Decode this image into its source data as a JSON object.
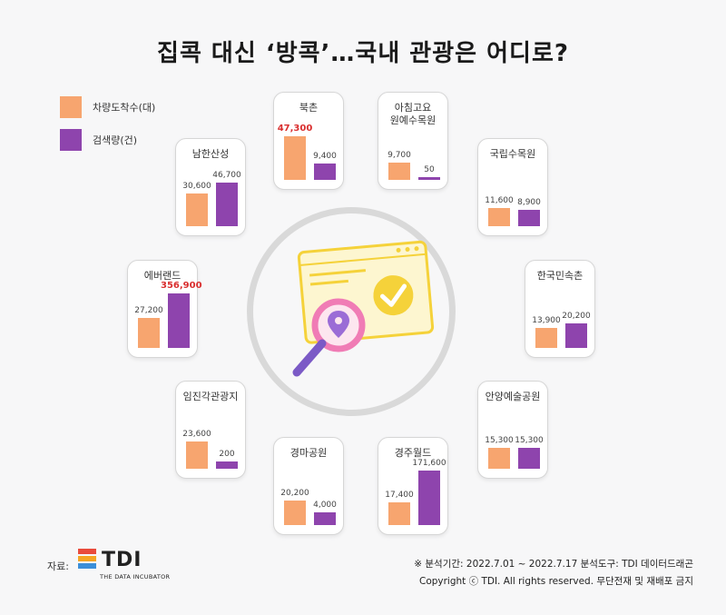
{
  "title": "집콕 대신 ‘방콕’…국내 관광은 어디로?",
  "legend": [
    {
      "label": "차량도착수(대)",
      "color": "#f7a56f"
    },
    {
      "label": "검색량(건)",
      "color": "#8e44ad"
    }
  ],
  "chart_data": {
    "type": "bar",
    "title": "집콕 대신 ‘방콕’…국내 관광은 어디로?",
    "series": [
      {
        "name": "차량도착수(대)",
        "color": "#f7a56f"
      },
      {
        "name": "검색량(건)",
        "color": "#8e44ad"
      }
    ],
    "categories": [
      {
        "name": "북촌",
        "vehicles": 47300,
        "searches": 9400,
        "vehicles_label": "47,300",
        "searches_label": "9,400",
        "highlight": "vehicles"
      },
      {
        "name": "아침고요\n원예수목원",
        "vehicles": 9700,
        "searches": 50,
        "vehicles_label": "9,700",
        "searches_label": "50",
        "highlight": ""
      },
      {
        "name": "국립수목원",
        "vehicles": 11600,
        "searches": 8900,
        "vehicles_label": "11,600",
        "searches_label": "8,900",
        "highlight": ""
      },
      {
        "name": "한국민속촌",
        "vehicles": 13900,
        "searches": 20200,
        "vehicles_label": "13,900",
        "searches_label": "20,200",
        "highlight": ""
      },
      {
        "name": "안양예술공원",
        "vehicles": 15300,
        "searches": 15300,
        "vehicles_label": "15,300",
        "searches_label": "15,300",
        "highlight": ""
      },
      {
        "name": "경주월드",
        "vehicles": 17400,
        "searches": 171600,
        "vehicles_label": "17,400",
        "searches_label": "171,600",
        "highlight": ""
      },
      {
        "name": "경마공원",
        "vehicles": 20200,
        "searches": 4000,
        "vehicles_label": "20,200",
        "searches_label": "4,000",
        "highlight": ""
      },
      {
        "name": "임진각관광지",
        "vehicles": 23600,
        "searches": 200,
        "vehicles_label": "23,600",
        "searches_label": "200",
        "highlight": ""
      },
      {
        "name": "에버랜드",
        "vehicles": 27200,
        "searches": 356900,
        "vehicles_label": "27,200",
        "searches_label": "356,900",
        "highlight": "searches"
      },
      {
        "name": "남한산성",
        "vehicles": 30600,
        "searches": 46700,
        "vehicles_label": "30,600",
        "searches_label": "46,700",
        "highlight": ""
      }
    ]
  },
  "footer": {
    "source_label": "자료:",
    "logo_text": "TDI",
    "logo_sub": "THE DATA INCUBATOR",
    "note_period": "※ 분석기간: 2022.7.01 ~ 2022.7.17   분석도구: TDI 데이터드래곤",
    "copyright": "Copyright ⓒ TDI. All rights reserved. 무단전재 및 재배포 금지"
  }
}
